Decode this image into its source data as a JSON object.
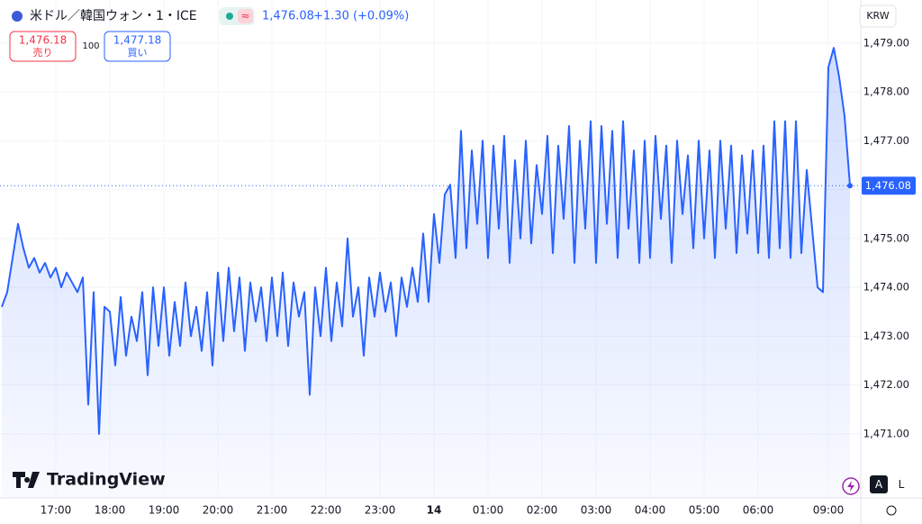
{
  "header": {
    "symbol": "米ドル／韓国ウォン・1・ICE",
    "price": "1,476.08",
    "change": "+1.30 (+0.09%)",
    "sell_price": "1,476.18",
    "sell_label": "売り",
    "spread": "100",
    "buy_price": "1,477.18",
    "buy_label": "買い",
    "currency": "KRW",
    "logo": "TradingView",
    "auto_button": "A",
    "log_button": "L"
  },
  "chart_data": {
    "type": "line",
    "grid": true,
    "color": "#2962ff",
    "xlim": [
      0,
      159
    ],
    "ylim": [
      1469.69,
      1479.88
    ],
    "xticks": [
      {
        "value": 10,
        "label": "17:00"
      },
      {
        "value": 20,
        "label": "18:00"
      },
      {
        "value": 30,
        "label": "19:00"
      },
      {
        "value": 40,
        "label": "20:00"
      },
      {
        "value": 50,
        "label": "21:00"
      },
      {
        "value": 60,
        "label": "22:00"
      },
      {
        "value": 70,
        "label": "23:00"
      },
      {
        "value": 80,
        "label": "14"
      },
      {
        "value": 90,
        "label": "01:00"
      },
      {
        "value": 100,
        "label": "02:00"
      },
      {
        "value": 110,
        "label": "03:00"
      },
      {
        "value": 120,
        "label": "04:00"
      },
      {
        "value": 130,
        "label": "05:00"
      },
      {
        "value": 140,
        "label": "06:00"
      },
      {
        "value": 153,
        "label": "09:00"
      }
    ],
    "yticks": [
      {
        "value": 1471,
        "label": "1,471.00"
      },
      {
        "value": 1472,
        "label": "1,472.00"
      },
      {
        "value": 1473,
        "label": "1,473.00"
      },
      {
        "value": 1474,
        "label": "1,474.00"
      },
      {
        "value": 1475,
        "label": "1,475.00"
      },
      {
        "value": 1476,
        "label": "1,476.00"
      },
      {
        "value": 1477,
        "label": "1,477.00"
      },
      {
        "value": 1478,
        "label": "1,478.00"
      },
      {
        "value": 1479,
        "label": "1,479.00"
      }
    ],
    "series": [
      {
        "name": "USD/KRW",
        "color": "#2962ff",
        "values": [
          1473.6,
          1473.9,
          1474.6,
          1475.3,
          1474.8,
          1474.4,
          1474.6,
          1474.3,
          1474.5,
          1474.2,
          1474.4,
          1474.0,
          1474.3,
          1474.1,
          1473.9,
          1474.2,
          1471.6,
          1473.9,
          1471.0,
          1473.6,
          1473.5,
          1472.4,
          1473.8,
          1472.6,
          1473.4,
          1472.9,
          1473.9,
          1472.2,
          1474.0,
          1472.8,
          1474.0,
          1472.6,
          1473.7,
          1472.8,
          1474.1,
          1473.0,
          1473.6,
          1472.7,
          1473.9,
          1472.4,
          1474.3,
          1472.9,
          1474.4,
          1473.1,
          1474.2,
          1472.7,
          1474.1,
          1473.3,
          1474.0,
          1472.9,
          1474.2,
          1473.0,
          1474.3,
          1472.8,
          1474.1,
          1473.4,
          1473.9,
          1471.8,
          1474.0,
          1473.0,
          1474.4,
          1472.9,
          1474.1,
          1473.2,
          1475.0,
          1473.4,
          1474.0,
          1472.6,
          1474.2,
          1473.4,
          1474.3,
          1473.5,
          1474.1,
          1473.0,
          1474.2,
          1473.6,
          1474.4,
          1473.7,
          1475.1,
          1473.7,
          1475.5,
          1474.5,
          1475.9,
          1476.1,
          1474.6,
          1477.2,
          1474.8,
          1476.8,
          1475.3,
          1477.0,
          1474.6,
          1476.9,
          1475.2,
          1477.1,
          1474.5,
          1476.6,
          1475.0,
          1477.0,
          1474.9,
          1476.5,
          1475.5,
          1477.1,
          1474.7,
          1476.9,
          1475.4,
          1477.3,
          1474.5,
          1477.0,
          1475.2,
          1477.4,
          1474.5,
          1477.3,
          1475.3,
          1477.2,
          1474.6,
          1477.4,
          1475.2,
          1476.8,
          1474.5,
          1477.0,
          1474.6,
          1477.1,
          1475.4,
          1476.9,
          1474.5,
          1477.0,
          1475.5,
          1476.7,
          1474.8,
          1477.0,
          1475.0,
          1476.8,
          1474.6,
          1477.0,
          1475.2,
          1476.9,
          1474.7,
          1476.7,
          1475.1,
          1476.8,
          1474.7,
          1476.9,
          1474.6,
          1477.4,
          1474.8,
          1477.4,
          1474.6,
          1477.4,
          1474.7,
          1476.4,
          1475.2,
          1474.0,
          1473.9,
          1478.5,
          1478.9,
          1478.3,
          1477.5,
          1476.08
        ]
      }
    ]
  }
}
